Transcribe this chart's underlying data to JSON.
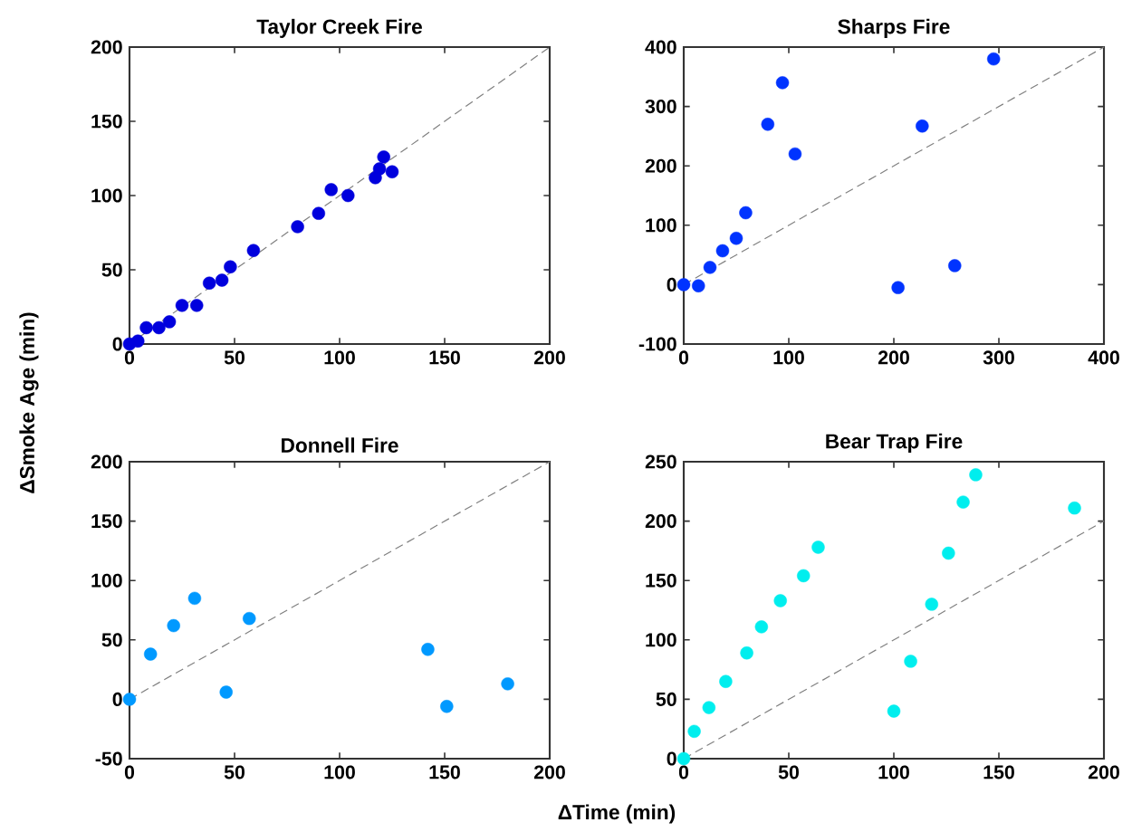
{
  "chart_data": [
    {
      "type": "scatter",
      "title": "Taylor Creek Fire",
      "ylabel": "ΔSmoke Age (min)",
      "xlim": [
        0,
        200
      ],
      "ylim": [
        0,
        200
      ],
      "xticks": [
        0,
        50,
        100,
        150,
        200
      ],
      "yticks": [
        0,
        50,
        100,
        150,
        200
      ],
      "series": [
        {
          "color": "#0000dd",
          "marker": "circle",
          "x": [
            0,
            4,
            8,
            14,
            19,
            25,
            32,
            38,
            44,
            48,
            59,
            80,
            90,
            96,
            104,
            117,
            119,
            121,
            125
          ],
          "values": [
            0,
            2,
            11,
            11,
            15,
            26,
            26,
            41,
            43,
            52,
            63,
            79,
            88,
            104,
            100,
            112,
            118,
            126,
            116
          ]
        },
        {
          "type": "line",
          "color": "#808080",
          "line_style": "dashed",
          "marker": "none",
          "x": [
            0,
            200
          ],
          "values": [
            0,
            200
          ]
        }
      ]
    },
    {
      "type": "scatter",
      "title": "Sharps Fire",
      "xlim": [
        0,
        400
      ],
      "ylim": [
        -100,
        400
      ],
      "xticks": [
        0,
        100,
        200,
        300,
        400
      ],
      "yticks": [
        -100,
        0,
        100,
        200,
        300,
        400
      ],
      "series": [
        {
          "color": "#0033ff",
          "marker": "circle",
          "x": [
            0,
            14,
            25,
            37,
            50,
            59,
            80,
            94,
            106,
            204,
            227,
            258,
            295
          ],
          "values": [
            0,
            -2,
            29,
            57,
            78,
            121,
            270,
            340,
            220,
            -5,
            267,
            32,
            380
          ]
        },
        {
          "type": "line",
          "color": "#808080",
          "line_style": "dashed",
          "marker": "none",
          "x": [
            0,
            400
          ],
          "values": [
            0,
            400
          ]
        }
      ]
    },
    {
      "type": "scatter",
      "title": "Donnell Fire",
      "xlabel": "ΔTime (min)",
      "xlim": [
        0,
        200
      ],
      "ylim": [
        -50,
        200
      ],
      "xticks": [
        0,
        50,
        100,
        150,
        200
      ],
      "yticks": [
        -50,
        0,
        50,
        100,
        150,
        200
      ],
      "series": [
        {
          "color": "#0099ff",
          "marker": "circle",
          "x": [
            0,
            10,
            21,
            31,
            46,
            57,
            142,
            151,
            180
          ],
          "values": [
            0,
            38,
            62,
            85,
            6,
            68,
            42,
            -6,
            13
          ]
        },
        {
          "type": "line",
          "color": "#808080",
          "line_style": "dashed",
          "marker": "none",
          "x": [
            0,
            200
          ],
          "values": [
            0,
            200
          ]
        }
      ]
    },
    {
      "type": "scatter",
      "title": "Bear Trap Fire",
      "xlim": [
        0,
        200
      ],
      "ylim": [
        0,
        250
      ],
      "xticks": [
        0,
        50,
        100,
        150,
        200
      ],
      "yticks": [
        0,
        50,
        100,
        150,
        200,
        250
      ],
      "series": [
        {
          "color": "#00eeee",
          "marker": "circle",
          "x": [
            0,
            5,
            12,
            20,
            30,
            37,
            46,
            57,
            64,
            100,
            108,
            118,
            126,
            133,
            139,
            186
          ],
          "values": [
            0,
            23,
            43,
            65,
            89,
            111,
            133,
            154,
            178,
            40,
            82,
            130,
            173,
            216,
            239,
            211
          ]
        },
        {
          "type": "line",
          "color": "#808080",
          "line_style": "dashed",
          "marker": "none",
          "x": [
            0,
            200
          ],
          "values": [
            0,
            200
          ]
        }
      ]
    }
  ]
}
